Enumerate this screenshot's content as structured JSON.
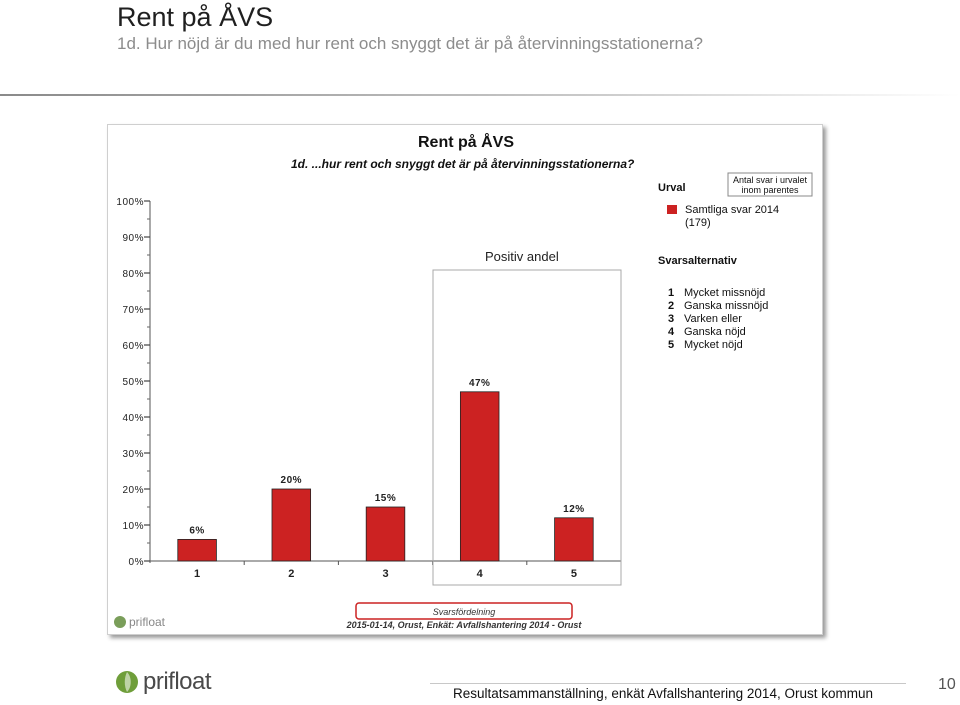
{
  "slide": {
    "title": "Rent på ÅVS",
    "subtitle": "1d. Hur nöjd är du med hur rent och snyggt det är på återvinningsstationerna?",
    "footer_text": "Resultatsammanställning, enkät Avfallshantering 2014, Orust kommun",
    "page_number": "10",
    "brand": "prifloat"
  },
  "chart_data": {
    "type": "bar",
    "title": "Rent på ÅVS",
    "subtitle": "1d. ...hur rent och snyggt det är på återvinningsstationerna?",
    "categories": [
      "1",
      "2",
      "3",
      "4",
      "5"
    ],
    "series": [
      {
        "name": "Samtliga svar 2014",
        "count": "(179)",
        "values": [
          6,
          20,
          15,
          47,
          12
        ],
        "color": "#cc2222"
      }
    ],
    "value_labels": [
      "6%",
      "20%",
      "15%",
      "47%",
      "12%"
    ],
    "y_ticks": [
      "0%",
      "10%",
      "20%",
      "30%",
      "40%",
      "50%",
      "60%",
      "70%",
      "80%",
      "90%",
      "100%"
    ],
    "ylim": [
      0,
      100
    ],
    "xlabel": "Svarsfördelning",
    "legend_placement": "right",
    "legend": {
      "urval_heading": "Urval",
      "note_line1": "Antal svar i urvalet",
      "note_line2": "inom parentes",
      "alternatives_heading": "Svarsalternativ",
      "alternatives": [
        {
          "num": "1",
          "label": "Mycket missnöjd"
        },
        {
          "num": "2",
          "label": "Ganska missnöjd"
        },
        {
          "num": "3",
          "label": "Varken eller"
        },
        {
          "num": "4",
          "label": "Ganska nöjd"
        },
        {
          "num": "5",
          "label": "Mycket nöjd"
        }
      ]
    },
    "annotation": "Positiv andel",
    "source_note": "2015-01-14, Orust, Enkät: Avfallshantering 2014 - Orust",
    "brand": "prifloat"
  }
}
